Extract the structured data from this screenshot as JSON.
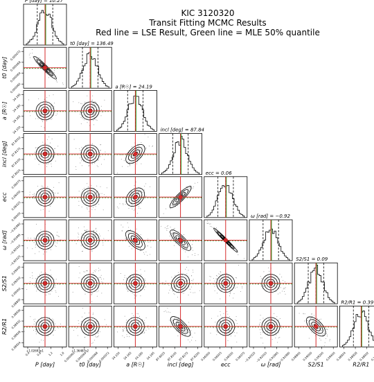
{
  "header": {
    "title_line1": "KIC 3120320",
    "title_line2": "Transit Fitting MCMC Results",
    "title_line3": "Red line = LSE Result, Green line = MLE 50% quantile"
  },
  "chart_data": {
    "type": "corner",
    "parameters": [
      {
        "key": "P",
        "label": "P [day]",
        "title": "P [day] = 10.27",
        "ticks": [
          "0.4",
          "0.8",
          "1.2",
          "1.6"
        ],
        "tick_offset": "+1.02693e1"
      },
      {
        "key": "t0",
        "label": "t0 [day]",
        "title": "t0 [day] = 136.49",
        "ticks": [
          "0.000060",
          "0.000064",
          "0.000068",
          "0.000072"
        ],
        "tick_offset": "+1.36487e2"
      },
      {
        "key": "a",
        "label": "a [R☉]",
        "title": "a [R☉] = 24.19",
        "ticks": [
          "24.150",
          "24.165",
          "24.180",
          "24.195"
        ],
        "tick_offset": ""
      },
      {
        "key": "incl",
        "label": "incl [deg]",
        "title": "incl [deg] = 87.84",
        "ticks": [
          "87.8025",
          "87.8100",
          "87.8175",
          "87.8250"
        ],
        "tick_offset": ""
      },
      {
        "key": "ecc",
        "label": "ecc",
        "title": "ecc = 0.06",
        "ticks": [
          "0.06000",
          "0.06025",
          "0.06050",
          "0.06075"
        ],
        "tick_offset": ""
      },
      {
        "key": "omega",
        "label": "ω [rad]",
        "title": "ω [rad] = −0.92",
        "ticks": [
          "−0.92025",
          "−0.92010",
          "−0.91995",
          "−0.91980"
        ],
        "tick_offset": ""
      },
      {
        "key": "S2S1",
        "label": "S2/S1",
        "title": "S2/S1 = 0.09",
        "ticks": [
          "0.08800",
          "0.09000",
          "0.09200",
          "0.09400"
        ],
        "tick_offset": ""
      },
      {
        "key": "R2R1",
        "label": "R2/R1",
        "title": "R2/R1 = 0.39",
        "ticks": [
          "0.38924",
          "0.38928",
          "0.38932",
          "0.38936"
        ],
        "tick_offset": ""
      }
    ],
    "correlations": [
      [
        0,
        0,
        0,
        0,
        0,
        0,
        0,
        0
      ],
      [
        -0.85,
        0,
        0,
        0,
        0,
        0,
        0,
        0
      ],
      [
        0.0,
        0.05,
        0,
        0,
        0,
        0,
        0,
        0
      ],
      [
        0.0,
        0.0,
        0.35,
        0,
        0,
        0,
        0,
        0
      ],
      [
        0.0,
        0.0,
        0.2,
        0.7,
        0,
        0,
        0,
        0
      ],
      [
        0.0,
        0.0,
        -0.4,
        -0.6,
        -0.97,
        0,
        0,
        0
      ],
      [
        0.0,
        0.0,
        0.0,
        0.1,
        0.0,
        0.0,
        0,
        0
      ],
      [
        0.0,
        0.0,
        0.0,
        -0.5,
        0.0,
        0.0,
        -0.4,
        0
      ]
    ],
    "line_colors": {
      "lse": "#d62728",
      "mle": "#2ca02c",
      "contour": "#000000",
      "quantile": "#000000"
    },
    "ylabel_rows": [
      "t0 [day]",
      "a [R☉]",
      "incl [deg]",
      "ecc",
      "ω [rad]",
      "S2/S1",
      "R2/R1"
    ]
  }
}
